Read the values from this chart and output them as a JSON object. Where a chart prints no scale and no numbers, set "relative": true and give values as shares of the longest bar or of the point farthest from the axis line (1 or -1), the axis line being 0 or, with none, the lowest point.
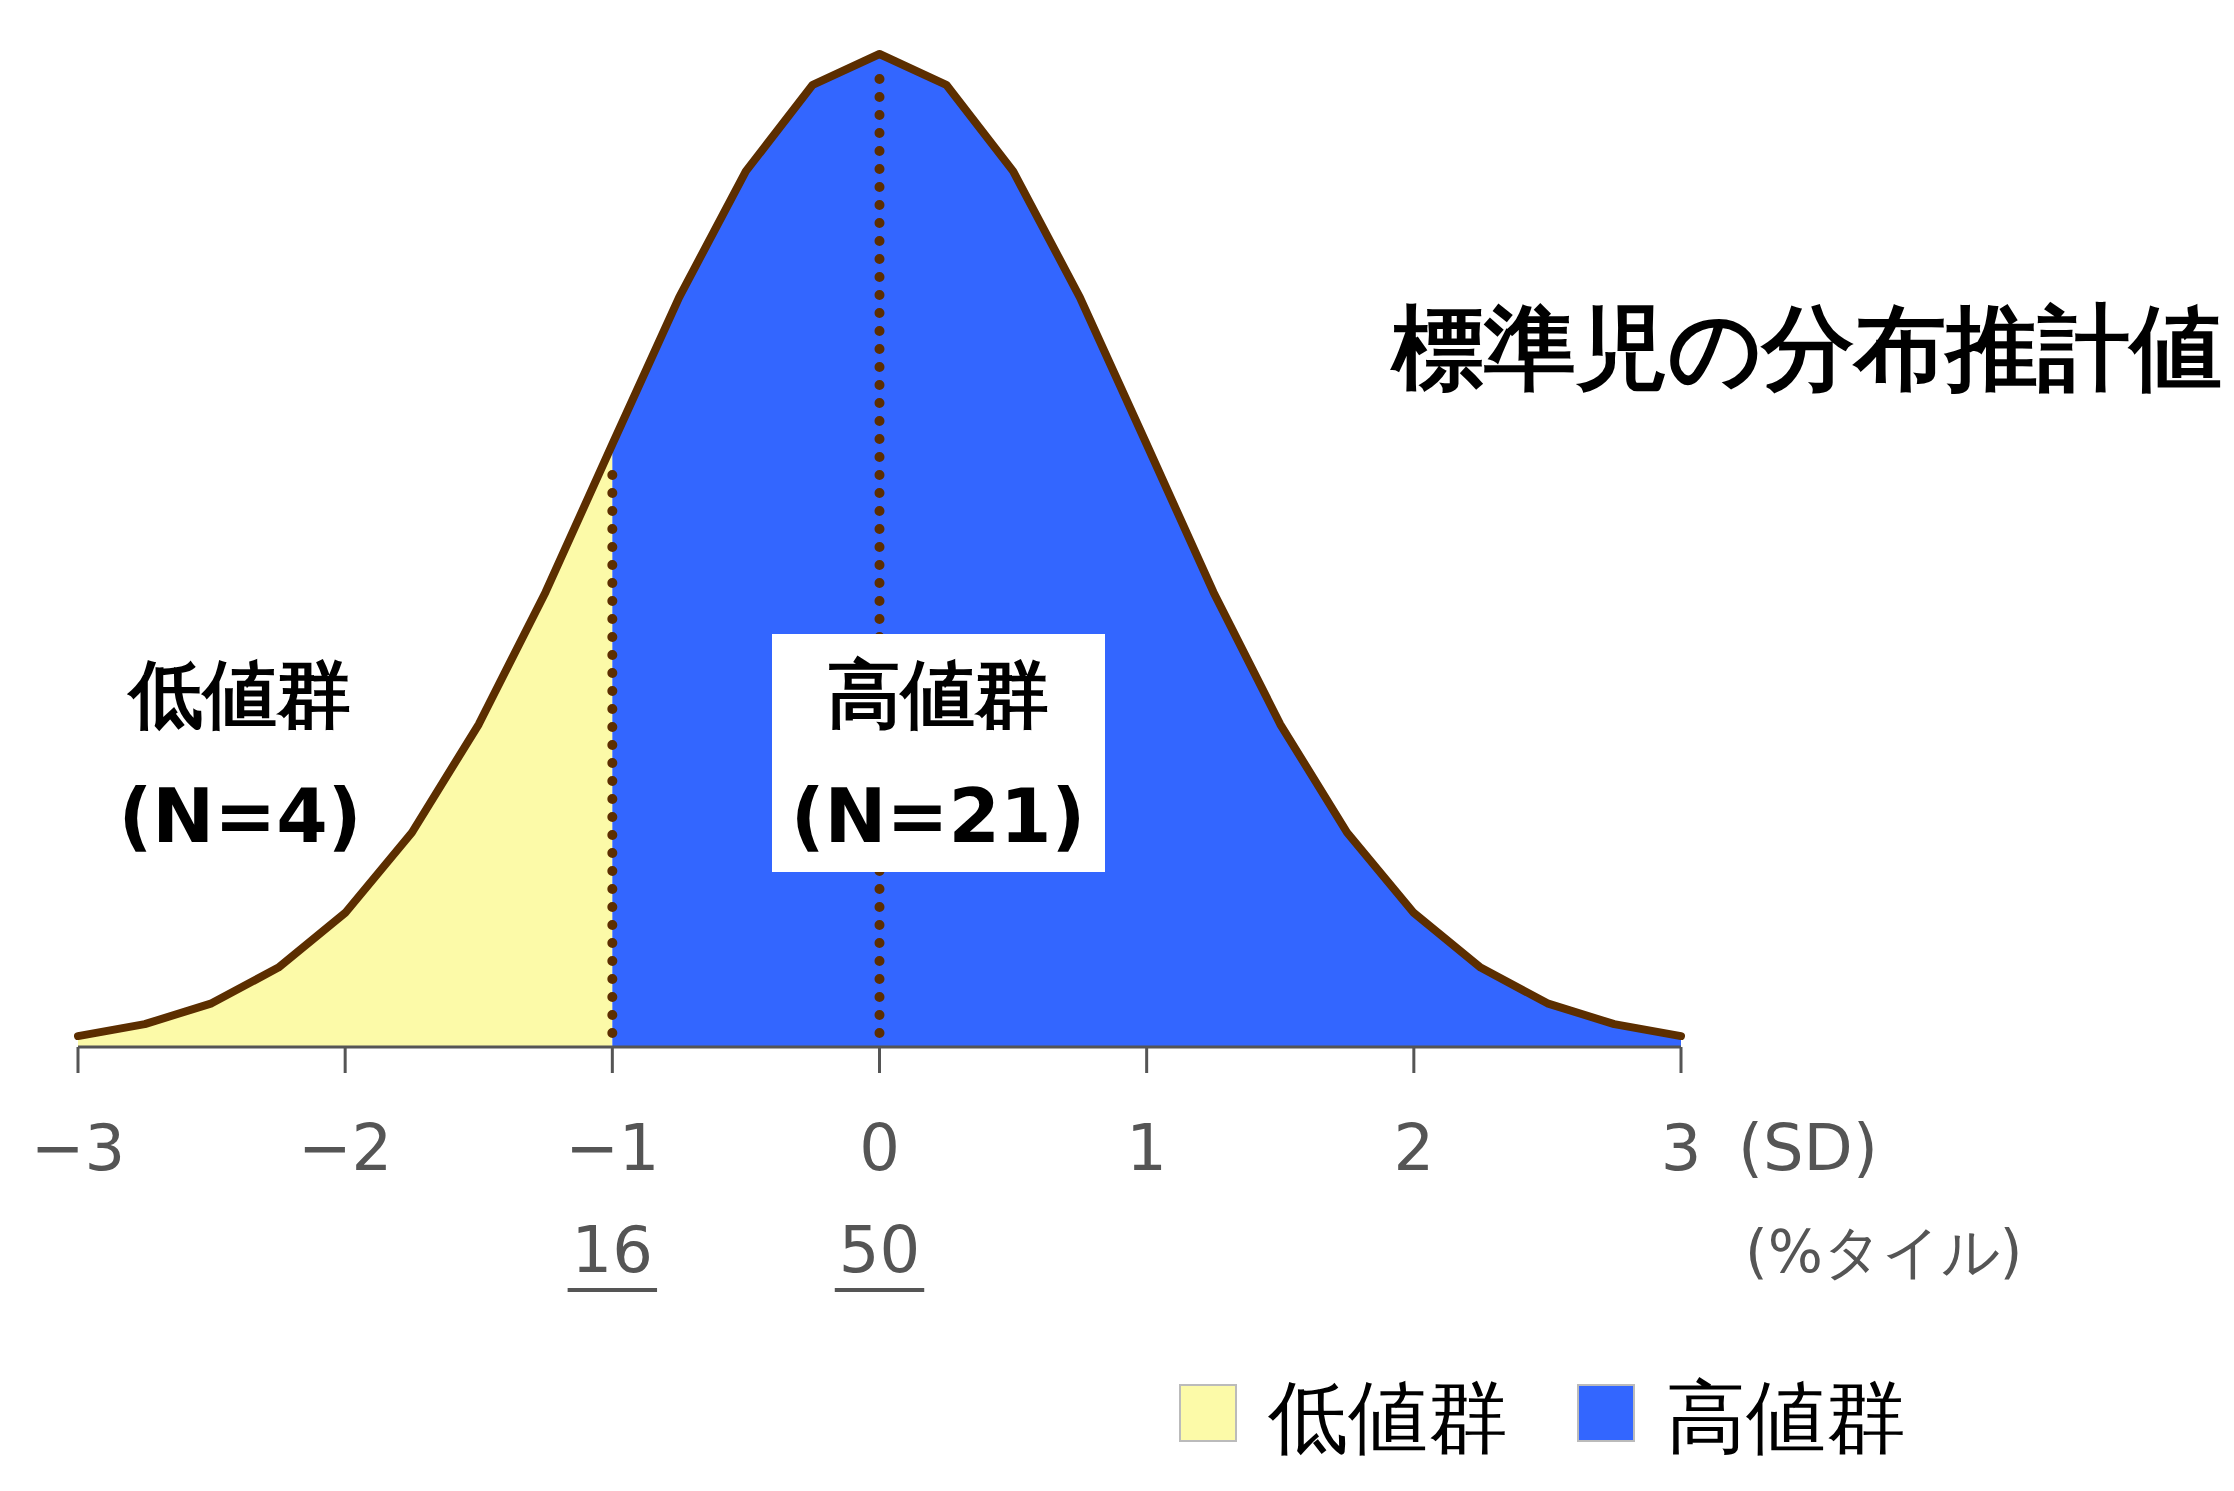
{
  "chart_data": {
    "type": "area",
    "title": "標準児の分布推計値",
    "xlabel": "(SD)",
    "relative": true,
    "xlim": [
      -3,
      3
    ],
    "xticks": [
      {
        "value": -3,
        "label": "−3"
      },
      {
        "value": -2,
        "label": "−2"
      },
      {
        "value": -1,
        "label": "−1"
      },
      0,
      1,
      2,
      3
    ],
    "series": [
      {
        "name": "低値群",
        "color": "#fcfaa8",
        "x": [
          -3,
          -2.75,
          -2.5,
          -2.25,
          -2,
          -1.75,
          -1.5,
          -1.25,
          -1
        ],
        "values": [
          0.011,
          0.023,
          0.044,
          0.08,
          0.135,
          0.216,
          0.325,
          0.458,
          0.607
        ]
      },
      {
        "name": "高値群",
        "color": "#3366ff",
        "x": [
          -1,
          -0.75,
          -0.5,
          -0.25,
          0,
          0.25,
          0.5,
          0.75,
          1,
          1.25,
          1.5,
          1.75,
          2,
          2.25,
          2.5,
          2.75,
          3
        ],
        "values": [
          0.607,
          0.755,
          0.882,
          0.969,
          1,
          0.969,
          0.882,
          0.755,
          0.607,
          0.458,
          0.325,
          0.216,
          0.135,
          0.08,
          0.044,
          0.023,
          0.011
        ]
      },
      {
        "type": "line",
        "color": "#5c2e00",
        "x": [
          -3,
          -2.75,
          -2.5,
          -2.25,
          -2,
          -1.75,
          -1.5,
          -1.25,
          -1,
          -0.75,
          -0.5,
          -0.25,
          0,
          0.25,
          0.5,
          0.75,
          1,
          1.25,
          1.5,
          1.75,
          2,
          2.25,
          2.5,
          2.75,
          3
        ],
        "values": [
          0.011,
          0.023,
          0.044,
          0.08,
          0.135,
          0.216,
          0.325,
          0.458,
          0.607,
          0.755,
          0.882,
          0.969,
          1,
          0.969,
          0.882,
          0.755,
          0.607,
          0.458,
          0.325,
          0.216,
          0.135,
          0.08,
          0.044,
          0.023,
          0.011
        ]
      }
    ],
    "ref_lines": [
      {
        "axis": "x",
        "value": -1,
        "color": "#5c2e00",
        "line_style": "dotted"
      },
      {
        "axis": "x",
        "value": 0,
        "color": "#5c2e00",
        "line_style": "dotted"
      }
    ],
    "annotations": [
      "(%タイル)",
      "低値群\n(N=4)",
      "高値群\n(N=21)",
      {
        "text": "16",
        "x": -1,
        "y": 0
      },
      {
        "text": "50",
        "x": 0,
        "y": 0
      }
    ],
    "legend": "bottom right"
  }
}
